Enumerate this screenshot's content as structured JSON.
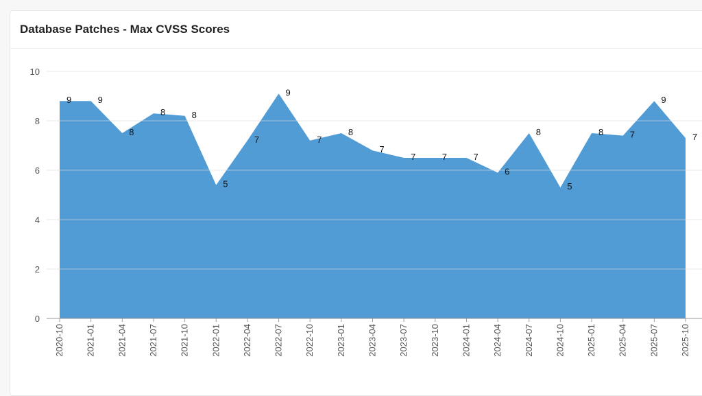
{
  "chart_data": {
    "type": "area",
    "title": "Database Patches - Max CVSS Scores",
    "xlabel": "",
    "ylabel": "",
    "ylim": [
      0,
      10
    ],
    "yticks": [
      0,
      2,
      4,
      6,
      8,
      10
    ],
    "grid": true,
    "color": "#529cd6",
    "categories": [
      "2020-10",
      "2021-01",
      "2021-04",
      "2021-07",
      "2021-10",
      "2022-01",
      "2022-04",
      "2022-07",
      "2022-10",
      "2023-01",
      "2023-04",
      "2023-07",
      "2023-10",
      "2024-01",
      "2024-04",
      "2024-07",
      "2024-10",
      "2025-01",
      "2025-04",
      "2025-07",
      "2025-10"
    ],
    "values": [
      8.8,
      8.8,
      7.5,
      8.3,
      8.2,
      5.4,
      7.2,
      9.1,
      7.2,
      7.5,
      6.8,
      6.5,
      6.5,
      6.5,
      5.9,
      7.5,
      5.3,
      7.5,
      7.4,
      8.8,
      7.3
    ],
    "data_labels": [
      "9",
      "9",
      "8",
      "8",
      "8",
      "5",
      "7",
      "9",
      "7",
      "8",
      "7",
      "7",
      "7",
      "7",
      "6",
      "8",
      "5",
      "8",
      "7",
      "9",
      "7"
    ]
  }
}
